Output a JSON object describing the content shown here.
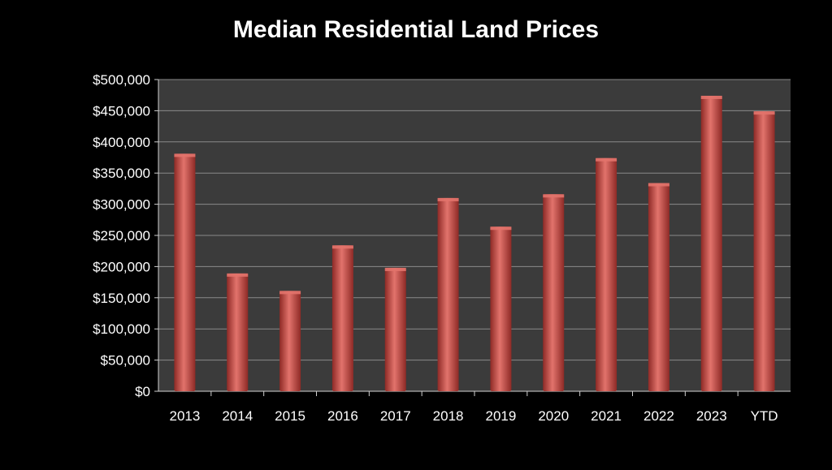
{
  "chart_data": {
    "type": "bar",
    "title": "Median Residential Land Prices",
    "xlabel": "",
    "ylabel": "",
    "categories": [
      "2013",
      "2014",
      "2015",
      "2016",
      "2017",
      "2018",
      "2019",
      "2020",
      "2021",
      "2022",
      "2023",
      "YTD"
    ],
    "values": [
      381000,
      189000,
      161000,
      234000,
      198000,
      310000,
      264000,
      316000,
      374000,
      334000,
      474000,
      449000
    ],
    "ylim": [
      0,
      500000
    ],
    "yticks": [
      0,
      50000,
      100000,
      150000,
      200000,
      250000,
      300000,
      350000,
      400000,
      450000,
      500000
    ],
    "ytick_labels": [
      "$0",
      "$50,000",
      "$100,000",
      "$150,000",
      "$200,000",
      "$250,000",
      "$300,000",
      "$350,000",
      "$400,000",
      "$450,000",
      "$500,000"
    ],
    "grid": true,
    "legend": "none",
    "colors": {
      "page_background": "#000000",
      "plot_background": "#3b3b3b",
      "bar_fill": "#c0413b",
      "bar_highlight": "#e2736c",
      "bar_shadow": "#8e2a26",
      "gridline": "#8a8a8a",
      "text": "#ffffff"
    }
  }
}
